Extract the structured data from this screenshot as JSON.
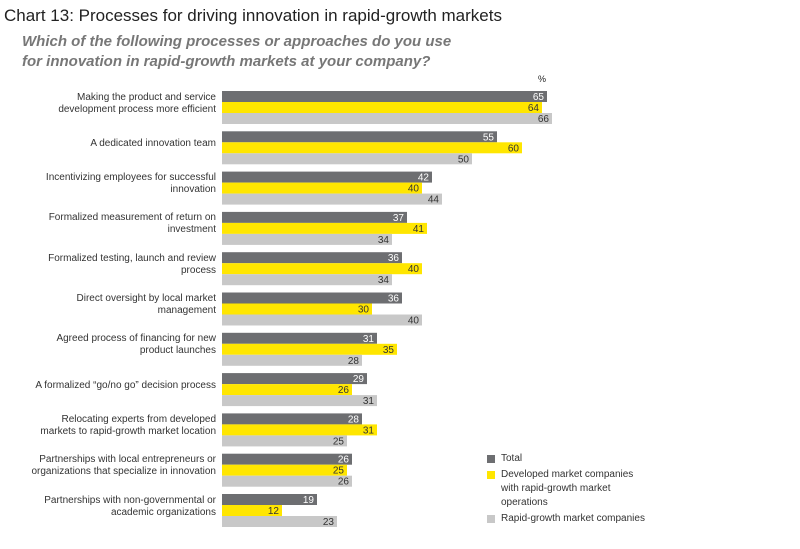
{
  "chart_data": {
    "type": "bar",
    "orientation": "horizontal",
    "title": "Chart 13: Processes for driving innovation in rapid-growth markets",
    "subtitle_lines": [
      "Which of the following processes or approaches do you use",
      "for innovation in rapid-growth markets at your company?"
    ],
    "unit_label": "%",
    "categories": [
      [
        "Making the product and service",
        "development process more efficient"
      ],
      [
        "A dedicated innovation team"
      ],
      [
        "Incentivizing employees for successful",
        "innovation"
      ],
      [
        "Formalized measurement of return on",
        "investment"
      ],
      [
        "Formalized testing, launch and review",
        "process"
      ],
      [
        "Direct oversight by local market",
        "management"
      ],
      [
        "Agreed process of financing for new",
        "product launches"
      ],
      [
        "A formalized “go/no go” decision process"
      ],
      [
        "Relocating experts from developed",
        "markets to rapid-growth market location"
      ],
      [
        "Partnerships with local entrepreneurs or",
        "organizations that specialize in innovation"
      ],
      [
        "Partnerships with non-governmental or",
        "academic organizations"
      ]
    ],
    "series": [
      {
        "name": "Total",
        "color": "#6d6e71",
        "label_color": "#ffffff",
        "values": [
          65,
          55,
          42,
          37,
          36,
          36,
          31,
          29,
          28,
          26,
          19
        ]
      },
      {
        "name": "Developed market companies with rapid-growth market operations",
        "color": "#ffe600",
        "label_color": "#333333",
        "values": [
          64,
          60,
          40,
          41,
          40,
          30,
          35,
          26,
          31,
          25,
          12
        ]
      },
      {
        "name": "Rapid-growth market companies",
        "color": "#c8c8c8",
        "label_color": "#333333",
        "values": [
          66,
          50,
          44,
          34,
          34,
          40,
          28,
          31,
          25,
          26,
          23
        ]
      }
    ],
    "legend": {
      "placement": "bottom-right",
      "entries": [
        {
          "color": "#6d6e71",
          "lines": [
            "Total"
          ]
        },
        {
          "color": "#ffe600",
          "lines": [
            "Developed market companies",
            "with rapid-growth market",
            "operations"
          ]
        },
        {
          "color": "#c8c8c8",
          "lines": [
            "Rapid-growth market companies"
          ]
        }
      ]
    },
    "grid": false
  }
}
